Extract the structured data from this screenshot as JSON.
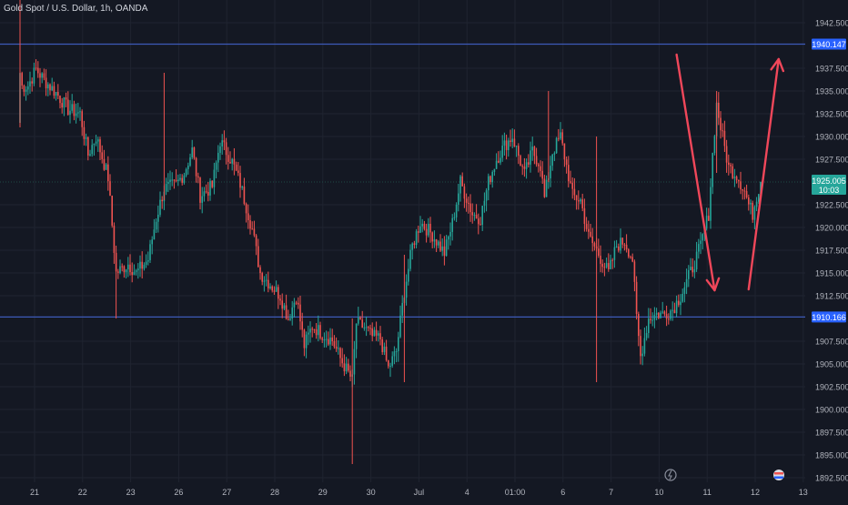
{
  "header": {
    "symbol_title": "Gold Spot / U.S. Dollar, 1h, OANDA"
  },
  "colors": {
    "background": "#141823",
    "grid": "#1f2430",
    "up": "#26a69a",
    "down": "#ef5350",
    "level_line": "#3d5ab8",
    "level_label_bg": "#2962ff",
    "price_label_bg": "#26a69a",
    "arrow": "#f0475a",
    "axis_text": "#b2b5be"
  },
  "chart_data": {
    "type": "candlestick",
    "title": "Gold Spot / U.S. Dollar, 1h, OANDA",
    "ylim": [
      1892,
      1945
    ],
    "y_ticks": [
      1942.5,
      1937.5,
      1935.0,
      1932.5,
      1930.0,
      1927.5,
      1922.5,
      1920.0,
      1917.5,
      1915.0,
      1912.5,
      1907.5,
      1905.0,
      1902.5,
      1900.0,
      1897.5,
      1895.0,
      1892.5
    ],
    "y_tick_labels": [
      "1942.500",
      "1937.500",
      "1935.000",
      "1932.500",
      "1930.000",
      "1927.500",
      "1922.500",
      "1920.000",
      "1917.500",
      "1915.000",
      "1912.500",
      "1907.500",
      "1905.000",
      "1902.500",
      "1900.000",
      "1897.500",
      "1895.000",
      "1892.500"
    ],
    "x_ticks": [
      "21",
      "22",
      "23",
      "26",
      "27",
      "28",
      "29",
      "30",
      "Jul",
      "4",
      "01:00",
      "6",
      "7",
      "10",
      "11",
      "12",
      "13"
    ],
    "x_tick_index": [
      0,
      24,
      48,
      72,
      96,
      120,
      144,
      168,
      192,
      216,
      240,
      264,
      288,
      312,
      336,
      360,
      384
    ],
    "horizontal_levels": [
      {
        "price": 1940.147,
        "label": "1940.147"
      },
      {
        "price": 1910.166,
        "label": "1910.166"
      }
    ],
    "current_price": {
      "price": 1925.005,
      "label": "1925.005",
      "countdown": "10:03"
    },
    "projected_path": [
      {
        "i": 328,
        "price": 1939
      },
      {
        "i": 347,
        "price": 1913.1
      },
      {
        "i": 364,
        "price": 1913.2
      },
      {
        "i": 379,
        "price": 1938.5
      }
    ],
    "anchors": [
      [
        0,
        1937.0
      ],
      [
        1,
        1935.5
      ],
      [
        4,
        1935.6
      ],
      [
        8,
        1937.4
      ],
      [
        12,
        1936.2
      ],
      [
        18,
        1934.8
      ],
      [
        24,
        1933.0
      ],
      [
        30,
        1932.5
      ],
      [
        34,
        1928.0
      ],
      [
        38,
        1930.0
      ],
      [
        44,
        1925.5
      ],
      [
        48,
        1915.0
      ],
      [
        54,
        1916.0
      ],
      [
        58,
        1915.0
      ],
      [
        64,
        1916.5
      ],
      [
        68,
        1921.0
      ],
      [
        72,
        1924.3
      ],
      [
        78,
        1924.7
      ],
      [
        82,
        1926.0
      ],
      [
        86,
        1928.5
      ],
      [
        90,
        1923.5
      ],
      [
        96,
        1924.5
      ],
      [
        100,
        1929.5
      ],
      [
        106,
        1927.2
      ],
      [
        110,
        1924.8
      ],
      [
        116,
        1919.8
      ],
      [
        120,
        1915.0
      ],
      [
        124,
        1914.0
      ],
      [
        130,
        1912.5
      ],
      [
        134,
        1910.0
      ],
      [
        138,
        1912.5
      ],
      [
        142,
        1907.0
      ],
      [
        146,
        1909.2
      ],
      [
        150,
        1908.5
      ],
      [
        156,
        1907.6
      ],
      [
        160,
        1905.6
      ],
      [
        166,
        1903.2
      ],
      [
        168,
        1909.5
      ],
      [
        172,
        1909.0
      ],
      [
        176,
        1908.0
      ],
      [
        180,
        1907.8
      ],
      [
        184,
        1904.5
      ],
      [
        188,
        1906.4
      ],
      [
        192,
        1913.0
      ],
      [
        196,
        1918.0
      ],
      [
        200,
        1920.6
      ],
      [
        206,
        1919.2
      ],
      [
        212,
        1917.2
      ],
      [
        216,
        1920.5
      ],
      [
        220,
        1925.0
      ],
      [
        226,
        1921.5
      ],
      [
        230,
        1921.0
      ],
      [
        234,
        1925.0
      ],
      [
        238,
        1927.5
      ],
      [
        242,
        1929.0
      ],
      [
        246,
        1930.0
      ],
      [
        252,
        1925.8
      ],
      [
        256,
        1928.4
      ],
      [
        260,
        1926.8
      ],
      [
        262,
        1923.2
      ],
      [
        266,
        1928.3
      ],
      [
        270,
        1930.0
      ],
      [
        276,
        1923.5
      ],
      [
        280,
        1923.0
      ],
      [
        284,
        1919.0
      ],
      [
        288,
        1917.5
      ],
      [
        294,
        1915.0
      ],
      [
        298,
        1918.0
      ],
      [
        302,
        1918.5
      ],
      [
        306,
        1916.5
      ],
      [
        308,
        1910.0
      ],
      [
        310,
        1905.8
      ],
      [
        314,
        1910.0
      ],
      [
        318,
        1910.5
      ],
      [
        322,
        1910.5
      ],
      [
        326,
        1911.0
      ],
      [
        330,
        1912.5
      ],
      [
        336,
        1915.6
      ],
      [
        340,
        1918.0
      ],
      [
        344,
        1921.5
      ],
      [
        346,
        1928.0
      ],
      [
        348,
        1933.5
      ],
      [
        350,
        1931.0
      ],
      [
        354,
        1926.6
      ],
      [
        358,
        1925.8
      ],
      [
        362,
        1924.0
      ],
      [
        364,
        1922.5
      ],
      [
        366,
        1921.5
      ],
      [
        368,
        1923.5
      ],
      [
        370,
        1925.0
      ]
    ]
  }
}
